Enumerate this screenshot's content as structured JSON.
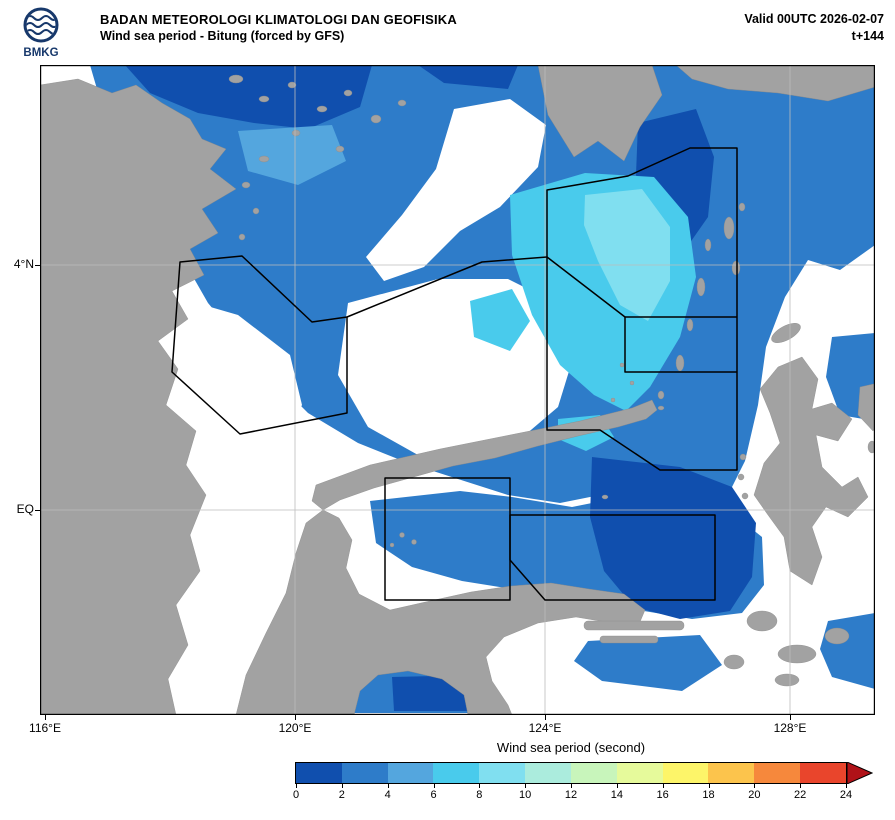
{
  "header": {
    "logo_text": "BMKG",
    "agency": "BADAN METEOROLOGI KLIMATOLOGI DAN GEOFISIKA",
    "product": "Wind sea period - Bitung (forced by GFS)",
    "valid_label": "Valid 00UTC 2026-02-07",
    "forecast_step": "t+144"
  },
  "map": {
    "lat_labels": [
      "4°N",
      "EQ"
    ],
    "lon_labels": [
      "116°E",
      "120°E",
      "124°E",
      "128°E"
    ]
  },
  "colorbar": {
    "label": "Wind sea period (second)",
    "ticks": [
      0,
      2,
      4,
      6,
      8,
      10,
      12,
      14,
      16,
      18,
      20,
      22,
      24
    ],
    "colors": [
      "#104fae",
      "#2e7cc9",
      "#54a6de",
      "#49cbec",
      "#80dff0",
      "#abecdd",
      "#c8f5bb",
      "#e6fa9b",
      "#fdf569",
      "#fcc44c",
      "#f6883c",
      "#e9452c"
    ],
    "arrow_color": "#b01218"
  },
  "colors": {
    "land": "#a2a2a2",
    "coastline": "#8a8a8a",
    "sea_white": "#ffffff",
    "sea_dark": "#104fae",
    "sea_medium": "#2e7cc9",
    "sea_light": "#54a6de",
    "sea_cyan": "#49cbec",
    "sea_pale": "#80dff0",
    "zone_outline": "#000000",
    "grid": "#bdbdbd",
    "frame": "#000000",
    "logo_navy": "#17386b",
    "text": "#000000"
  }
}
